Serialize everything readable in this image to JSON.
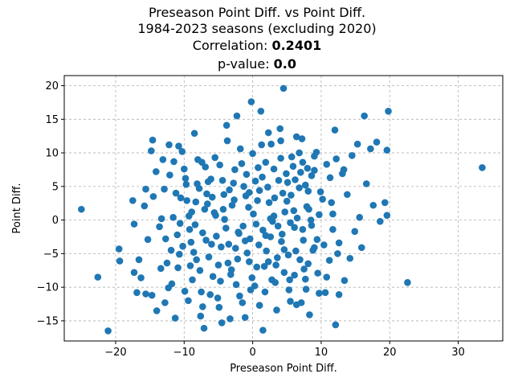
{
  "titles": {
    "line1": "Preseason Point Diff. vs Point Diff.",
    "line2": "1984-2023 seasons (excluding 2020)",
    "correlation_label": "Correlation: ",
    "correlation_value": "0.2401",
    "pvalue_label": "p-value: ",
    "pvalue_value": "0.0"
  },
  "chart_data": {
    "type": "scatter",
    "title": "Preseason Point Diff. vs Point Diff.",
    "subtitle": "1984-2023 seasons (excluding 2020)",
    "annotations": [
      "Correlation: 0.2401",
      "p-value: 0.0"
    ],
    "xlabel": "Preseason Point Diff.",
    "ylabel": "Point Diff.",
    "xlim": [
      -27.5,
      36.5
    ],
    "ylim": [
      -18.0,
      21.5
    ],
    "xticks": [
      -20,
      -10,
      0,
      10,
      20,
      30
    ],
    "yticks": [
      -15,
      -10,
      -5,
      0,
      5,
      10,
      15,
      20
    ],
    "grid": true,
    "marker_color": "#1f77b4",
    "points": [
      [
        -25.0,
        1.6
      ],
      [
        -22.6,
        -8.5
      ],
      [
        -21.1,
        -16.5
      ],
      [
        -19.5,
        -4.3
      ],
      [
        -19.4,
        -6.1
      ],
      [
        -17.5,
        2.9
      ],
      [
        -17.3,
        -0.6
      ],
      [
        -17.3,
        -7.8
      ],
      [
        -16.9,
        -10.8
      ],
      [
        -16.6,
        -5.9
      ],
      [
        -16.3,
        -8.6
      ],
      [
        -15.8,
        2.1
      ],
      [
        -15.6,
        4.6
      ],
      [
        -15.6,
        -11.0
      ],
      [
        -15.3,
        -2.9
      ],
      [
        -14.7,
        -11.2
      ],
      [
        -14.8,
        10.3
      ],
      [
        -14.6,
        11.9
      ],
      [
        -14.5,
        3.5
      ],
      [
        -14.1,
        7.2
      ],
      [
        -14.0,
        -13.5
      ],
      [
        -13.6,
        -1.0
      ],
      [
        -13.4,
        -7.2
      ],
      [
        -13.1,
        9.0
      ],
      [
        -12.8,
        -12.3
      ],
      [
        -12.7,
        -2.8
      ],
      [
        -12.2,
        11.2
      ],
      [
        -12.1,
        6.7
      ],
      [
        -11.9,
        -4.5
      ],
      [
        -11.6,
        0.4
      ],
      [
        -11.3,
        -14.6
      ],
      [
        -11.0,
        -2.2
      ],
      [
        -10.8,
        11.0
      ],
      [
        -10.5,
        3.3
      ],
      [
        -10.3,
        10.2
      ],
      [
        -9.9,
        -10.6
      ],
      [
        -9.8,
        6.2
      ],
      [
        -9.4,
        -12.0
      ],
      [
        -9.2,
        -1.4
      ],
      [
        -8.9,
        1.2
      ],
      [
        -8.5,
        12.9
      ],
      [
        -8.2,
        -5.9
      ],
      [
        -7.8,
        4.7
      ],
      [
        -7.6,
        -14.3
      ],
      [
        -7.4,
        8.6
      ],
      [
        -7.1,
        -16.1
      ],
      [
        -6.8,
        -3.0
      ],
      [
        -6.6,
        2.4
      ],
      [
        -6.1,
        6.1
      ],
      [
        -5.8,
        -8.4
      ],
      [
        -5.4,
        0.7
      ],
      [
        -5.1,
        -11.6
      ],
      [
        -4.8,
        8.2
      ],
      [
        -4.5,
        -15.3
      ],
      [
        -4.2,
        3.8
      ],
      [
        -3.8,
        14.1
      ],
      [
        -3.5,
        -3.6
      ],
      [
        -3.3,
        -14.7
      ],
      [
        -2.8,
        5.5
      ],
      [
        -2.3,
        15.5
      ],
      [
        -2.1,
        -1.8
      ],
      [
        -1.8,
        10.6
      ],
      [
        -1.1,
        -14.5
      ],
      [
        -0.8,
        -4.9
      ],
      [
        -0.5,
        4.1
      ],
      [
        -0.2,
        17.6
      ],
      [
        0.3,
        -9.8
      ],
      [
        0.7,
        2.9
      ],
      [
        1.2,
        16.2
      ],
      [
        1.5,
        -16.4
      ],
      [
        1.9,
        8.6
      ],
      [
        2.3,
        -6.2
      ],
      [
        2.7,
        11.3
      ],
      [
        3.1,
        0.6
      ],
      [
        3.5,
        -13.4
      ],
      [
        4.0,
        13.6
      ],
      [
        4.2,
        -3.2
      ],
      [
        4.5,
        19.6
      ],
      [
        4.9,
        6.9
      ],
      [
        5.3,
        -10.4
      ],
      [
        5.7,
        9.4
      ],
      [
        6.1,
        -1.1
      ],
      [
        6.4,
        -12.6
      ],
      [
        6.8,
        4.8
      ],
      [
        7.2,
        12.1
      ],
      [
        7.5,
        -7.3
      ],
      [
        7.9,
        2.0
      ],
      [
        8.3,
        -14.1
      ],
      [
        8.6,
        6.6
      ],
      [
        9.0,
        -4.1
      ],
      [
        9.3,
        10.1
      ],
      [
        9.7,
        -10.9
      ],
      [
        10.2,
        3.1
      ],
      [
        10.8,
        8.3
      ],
      [
        11.2,
        -6.0
      ],
      [
        11.7,
        0.9
      ],
      [
        12.0,
        13.4
      ],
      [
        12.1,
        -15.6
      ],
      [
        12.6,
        -3.4
      ],
      [
        13.1,
        6.9
      ],
      [
        13.4,
        -9.0
      ],
      [
        13.8,
        3.8
      ],
      [
        14.2,
        -5.7
      ],
      [
        14.5,
        9.6
      ],
      [
        14.9,
        -1.7
      ],
      [
        15.3,
        11.3
      ],
      [
        15.6,
        0.4
      ],
      [
        15.9,
        -4.1
      ],
      [
        16.3,
        15.5
      ],
      [
        16.6,
        5.4
      ],
      [
        17.2,
        10.6
      ],
      [
        17.6,
        2.2
      ],
      [
        18.1,
        11.6
      ],
      [
        18.6,
        -0.2
      ],
      [
        19.3,
        2.6
      ],
      [
        19.6,
        10.4
      ],
      [
        19.8,
        16.2
      ],
      [
        19.6,
        0.7
      ],
      [
        22.6,
        -9.3
      ],
      [
        33.5,
        7.8
      ],
      [
        -9.0,
        -3.3
      ],
      [
        -8.4,
        -0.7
      ],
      [
        -7.7,
        -7.5
      ],
      [
        -7.0,
        1.6
      ],
      [
        -6.4,
        -5.5
      ],
      [
        -5.9,
        3.4
      ],
      [
        -5.3,
        -2.4
      ],
      [
        -4.7,
        -9.1
      ],
      [
        -4.1,
        0.1
      ],
      [
        -3.6,
        -6.4
      ],
      [
        -3.0,
        2.2
      ],
      [
        -2.5,
        -4.2
      ],
      [
        -1.9,
        -11.3
      ],
      [
        -1.4,
        -0.9
      ],
      [
        -0.9,
        6.8
      ],
      [
        -0.4,
        -2.8
      ],
      [
        0.1,
        0.9
      ],
      [
        0.6,
        -7.0
      ],
      [
        1.0,
        4.4
      ],
      [
        1.5,
        -1.5
      ],
      [
        2.0,
        -4.6
      ],
      [
        2.4,
        2.6
      ],
      [
        2.9,
        -0.2
      ],
      [
        3.3,
        -9.3
      ],
      [
        3.8,
        5.9
      ],
      [
        4.3,
        -2.1
      ],
      [
        4.7,
        1.2
      ],
      [
        5.2,
        -5.2
      ],
      [
        5.6,
        3.7
      ],
      [
        6.1,
        -8.2
      ],
      [
        6.5,
        0.3
      ],
      [
        7.0,
        7.1
      ],
      [
        7.4,
        -3.0
      ],
      [
        7.8,
        -10.3
      ],
      [
        8.2,
        1.6
      ],
      [
        -10.9,
        -7.1
      ],
      [
        -10.2,
        -3.9
      ],
      [
        -9.6,
        2.9
      ],
      [
        -8.8,
        -8.9
      ],
      [
        -8.1,
        5.4
      ],
      [
        -7.3,
        -1.9
      ],
      [
        -6.9,
        7.9
      ],
      [
        -6.2,
        -11.1
      ],
      [
        -5.6,
        1.1
      ],
      [
        -5.0,
        -6.7
      ],
      [
        -4.4,
        5.9
      ],
      [
        -3.9,
        -1.2
      ],
      [
        -3.2,
        -8.1
      ],
      [
        -2.7,
        3.0
      ],
      [
        -2.2,
        -5.8
      ],
      [
        -1.6,
        8.4
      ],
      [
        -1.1,
        -3.1
      ],
      [
        -0.6,
        1.9
      ],
      [
        -0.1,
        -8.6
      ],
      [
        0.4,
        5.8
      ],
      [
        0.9,
        -3.7
      ],
      [
        1.3,
        11.2
      ],
      [
        1.8,
        -10.7
      ],
      [
        2.2,
        4.9
      ],
      [
        2.6,
        -2.5
      ],
      [
        3.1,
        7.6
      ],
      [
        3.6,
        -5.6
      ],
      [
        4.1,
        9.2
      ],
      [
        4.6,
        -7.8
      ],
      [
        5.0,
        2.8
      ],
      [
        5.5,
        -0.4
      ],
      [
        5.9,
        8.0
      ],
      [
        6.3,
        -4.6
      ],
      [
        6.8,
        10.0
      ],
      [
        7.3,
        -1.4
      ],
      [
        7.7,
        5.2
      ],
      [
        8.1,
        -6.5
      ],
      [
        8.5,
        0.0
      ],
      [
        9.0,
        7.4
      ],
      [
        9.4,
        -2.9
      ],
      [
        -12.5,
        -6.4
      ],
      [
        -11.8,
        -9.5
      ],
      [
        -11.2,
        4.0
      ],
      [
        -10.6,
        -0.5
      ],
      [
        -10.0,
        7.6
      ],
      [
        -9.3,
        0.6
      ],
      [
        -8.6,
        -4.8
      ],
      [
        -8.0,
        9.0
      ],
      [
        -7.3,
        -12.9
      ],
      [
        -6.7,
        3.9
      ],
      [
        -6.0,
        -3.6
      ],
      [
        -5.5,
        9.3
      ],
      [
        -4.9,
        -13.0
      ],
      [
        -4.3,
        1.6
      ],
      [
        -3.7,
        11.8
      ],
      [
        -3.1,
        -7.4
      ],
      [
        -2.6,
        7.5
      ],
      [
        -2.0,
        -2.0
      ],
      [
        -1.5,
        -12.3
      ],
      [
        -1.0,
        3.6
      ],
      [
        -0.5,
        -6.2
      ],
      [
        0.0,
        9.9
      ],
      [
        0.5,
        -0.6
      ],
      [
        1.0,
        -12.7
      ],
      [
        1.4,
        6.4
      ],
      [
        1.9,
        -2.3
      ],
      [
        2.3,
        13.0
      ],
      [
        2.8,
        -8.9
      ],
      [
        3.2,
        3.3
      ],
      [
        3.7,
        -0.9
      ],
      [
        4.1,
        11.8
      ],
      [
        4.6,
        -4.4
      ],
      [
        5.1,
        5.6
      ],
      [
        5.5,
        -12.1
      ],
      [
        6.0,
        1.4
      ],
      [
        6.4,
        12.4
      ],
      [
        6.9,
        -5.9
      ],
      [
        7.3,
        8.6
      ],
      [
        7.7,
        -8.8
      ],
      [
        8.1,
        4.3
      ],
      [
        8.6,
        -0.8
      ],
      [
        9.0,
        9.5
      ],
      [
        9.5,
        -7.9
      ],
      [
        9.9,
        4.2
      ],
      [
        10.4,
        -3.7
      ],
      [
        10.8,
        -8.5
      ],
      [
        11.3,
        6.3
      ],
      [
        11.7,
        -1.4
      ],
      [
        12.2,
        9.1
      ],
      [
        12.6,
        -11.1
      ],
      [
        -13.3,
        0.2
      ],
      [
        -12.9,
        4.6
      ],
      [
        -12.3,
        -10.1
      ],
      [
        -11.5,
        8.7
      ],
      [
        -10.7,
        -5.1
      ],
      [
        -9.7,
        5.3
      ],
      [
        -9.1,
        -6.8
      ],
      [
        -8.3,
        2.7
      ],
      [
        -7.5,
        -10.7
      ],
      [
        -6.5,
        5.7
      ],
      [
        -4.6,
        -4.0
      ],
      [
        -3.4,
        4.5
      ],
      [
        -2.4,
        -9.6
      ],
      [
        -1.3,
        5.0
      ],
      [
        -0.3,
        -10.4
      ],
      [
        0.8,
        7.8
      ],
      [
        1.7,
        -6.9
      ],
      [
        2.6,
        0.2
      ],
      [
        3.4,
        -6.7
      ],
      [
        4.4,
        4.0
      ],
      [
        5.4,
        -8.9
      ],
      [
        6.2,
        6.0
      ],
      [
        7.1,
        -12.3
      ],
      [
        8.0,
        7.7
      ],
      [
        8.8,
        -4.5
      ],
      [
        9.7,
        0.8
      ],
      [
        10.6,
        -10.8
      ],
      [
        11.5,
        2.6
      ],
      [
        12.4,
        -5.0
      ],
      [
        13.3,
        7.5
      ]
    ]
  }
}
